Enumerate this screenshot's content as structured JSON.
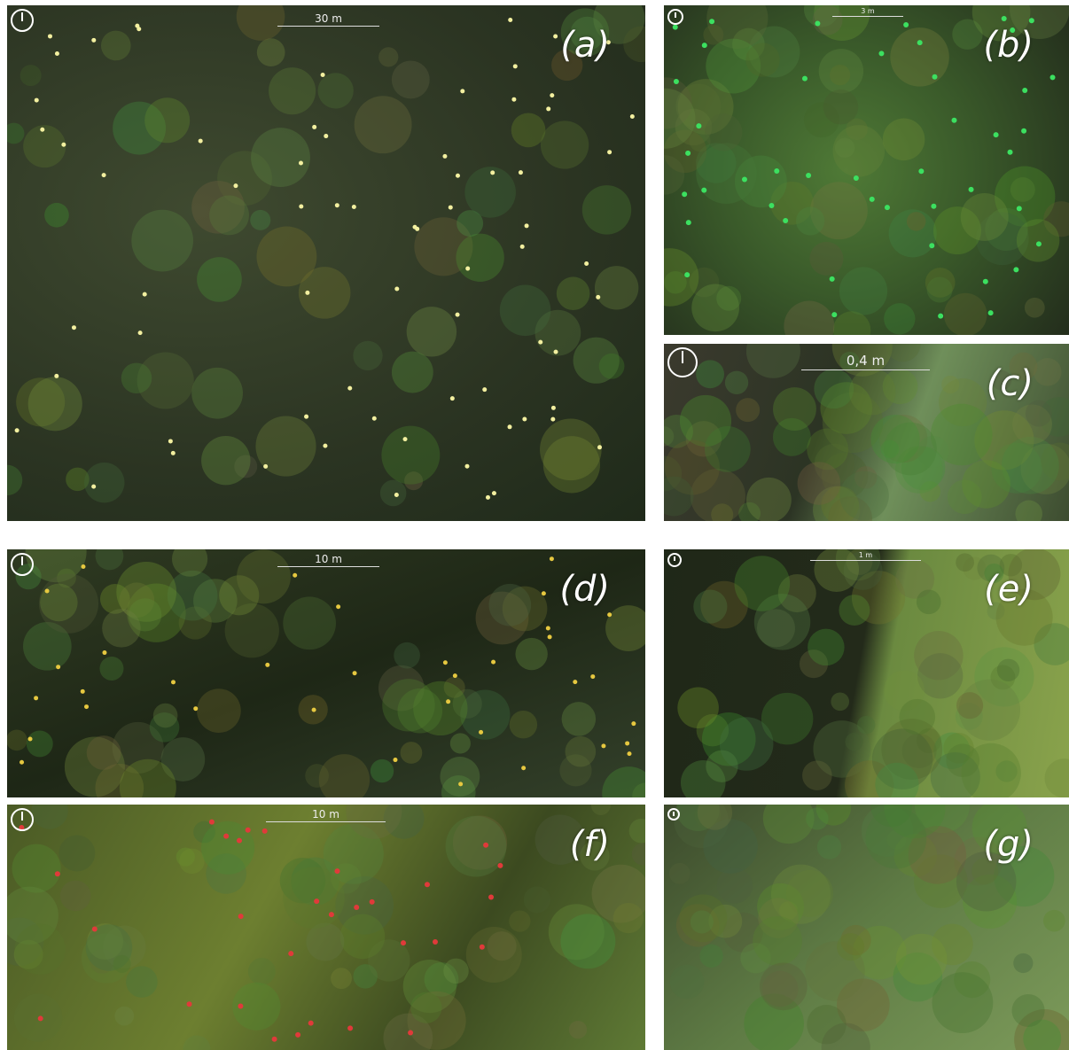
{
  "panels": [
    {
      "label": "(a)",
      "scale": "30 m"
    },
    {
      "label": "(b)",
      "scale": "3 m"
    },
    {
      "label": "(c)",
      "scale": "0,4 m"
    },
    {
      "label": "(d)",
      "scale": "10 m"
    },
    {
      "label": "(e)",
      "scale": "1 m"
    },
    {
      "label": "(f)",
      "scale": "10 m"
    },
    {
      "label": "(g)"
    }
  ]
}
